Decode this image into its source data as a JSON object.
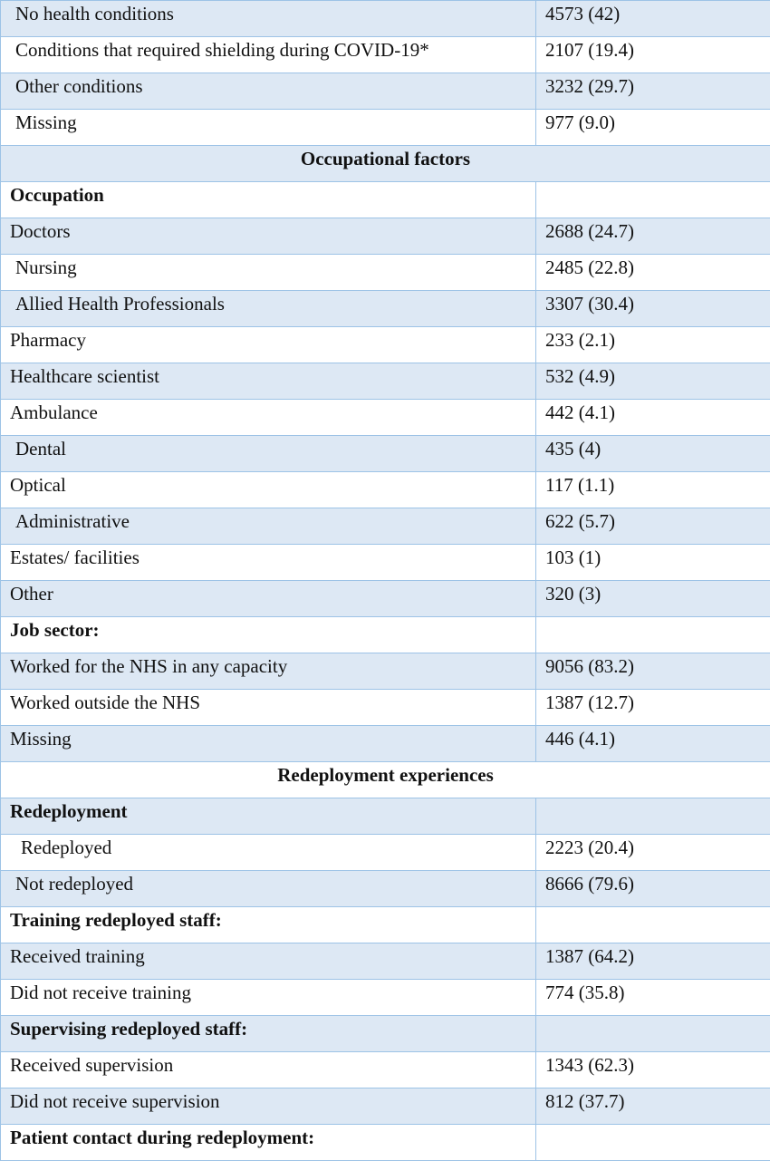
{
  "rows": [
    {
      "label": "No health conditions",
      "value": "4573 (42)",
      "kind": "item",
      "indent": 1,
      "shade": true
    },
    {
      "label": "Conditions that required shielding during COVID-19*",
      "value": "2107 (19.4)",
      "kind": "item",
      "indent": 1,
      "shade": false
    },
    {
      "label": "Other conditions",
      "value": "3232 (29.7)",
      "kind": "item",
      "indent": 1,
      "shade": true
    },
    {
      "label": "Missing",
      "value": "977 (9.0)",
      "kind": "item",
      "indent": 1,
      "shade": false
    },
    {
      "label": "Occupational factors",
      "value": "",
      "kind": "section",
      "indent": 0,
      "shade": true
    },
    {
      "label": "Occupation",
      "value": "",
      "kind": "heading",
      "indent": 0,
      "shade": false
    },
    {
      "label": "Doctors",
      "value": "2688 (24.7)",
      "kind": "item",
      "indent": 0,
      "shade": true
    },
    {
      "label": "Nursing",
      "value": "2485 (22.8)",
      "kind": "item",
      "indent": 1,
      "shade": false
    },
    {
      "label": "Allied Health Professionals",
      "value": "3307 (30.4)",
      "kind": "item",
      "indent": 1,
      "shade": true
    },
    {
      "label": "Pharmacy",
      "value": "233 (2.1)",
      "kind": "item",
      "indent": 0,
      "shade": false
    },
    {
      "label": "Healthcare scientist",
      "value": "532 (4.9)",
      "kind": "item",
      "indent": 0,
      "shade": true
    },
    {
      "label": "Ambulance",
      "value": "442 (4.1)",
      "kind": "item",
      "indent": 0,
      "shade": false
    },
    {
      "label": "Dental",
      "value": "435 (4)",
      "kind": "item",
      "indent": 1,
      "shade": true
    },
    {
      "label": "Optical",
      "value": "117 (1.1)",
      "kind": "item",
      "indent": 0,
      "shade": false
    },
    {
      "label": "Administrative",
      "value": "622 (5.7)",
      "kind": "item",
      "indent": 1,
      "shade": true
    },
    {
      "label": "Estates/ facilities",
      "value": "103 (1)",
      "kind": "item",
      "indent": 0,
      "shade": false
    },
    {
      "label": "Other",
      "value": "320 (3)",
      "kind": "item",
      "indent": 0,
      "shade": true
    },
    {
      "label": "Job sector:",
      "value": "",
      "kind": "heading",
      "indent": 0,
      "shade": false
    },
    {
      "label": "Worked for the NHS in any capacity",
      "value": "9056 (83.2)",
      "kind": "item",
      "indent": 0,
      "shade": true
    },
    {
      "label": "Worked outside the NHS",
      "value": "1387 (12.7)",
      "kind": "item",
      "indent": 0,
      "shade": false
    },
    {
      "label": "Missing",
      "value": "446 (4.1)",
      "kind": "item",
      "indent": 0,
      "shade": true
    },
    {
      "label": "Redeployment experiences",
      "value": "",
      "kind": "section",
      "indent": 0,
      "shade": false
    },
    {
      "label": "Redeployment",
      "value": "",
      "kind": "heading",
      "indent": 0,
      "shade": true
    },
    {
      "label": "Redeployed",
      "value": "2223 (20.4)",
      "kind": "item",
      "indent": 2,
      "shade": false
    },
    {
      "label": "Not redeployed",
      "value": "8666 (79.6)",
      "kind": "item",
      "indent": 1,
      "shade": true
    },
    {
      "label": "Training redeployed staff:",
      "value": "",
      "kind": "heading",
      "indent": 0,
      "shade": false
    },
    {
      "label": "Received training",
      "value": "1387 (64.2)",
      "kind": "item",
      "indent": 0,
      "shade": true
    },
    {
      "label": "Did not receive training",
      "value": "774 (35.8)",
      "kind": "item",
      "indent": 0,
      "shade": false
    },
    {
      "label": "Supervising redeployed staff:",
      "value": "",
      "kind": "heading",
      "indent": 0,
      "shade": true
    },
    {
      "label": "Received supervision",
      "value": "1343 (62.3)",
      "kind": "item",
      "indent": 0,
      "shade": false
    },
    {
      "label": "Did not receive supervision",
      "value": "812 (37.7)",
      "kind": "item",
      "indent": 0,
      "shade": true
    },
    {
      "label": "Patient contact during redeployment:",
      "value": "",
      "kind": "heading",
      "indent": 0,
      "shade": false
    }
  ]
}
